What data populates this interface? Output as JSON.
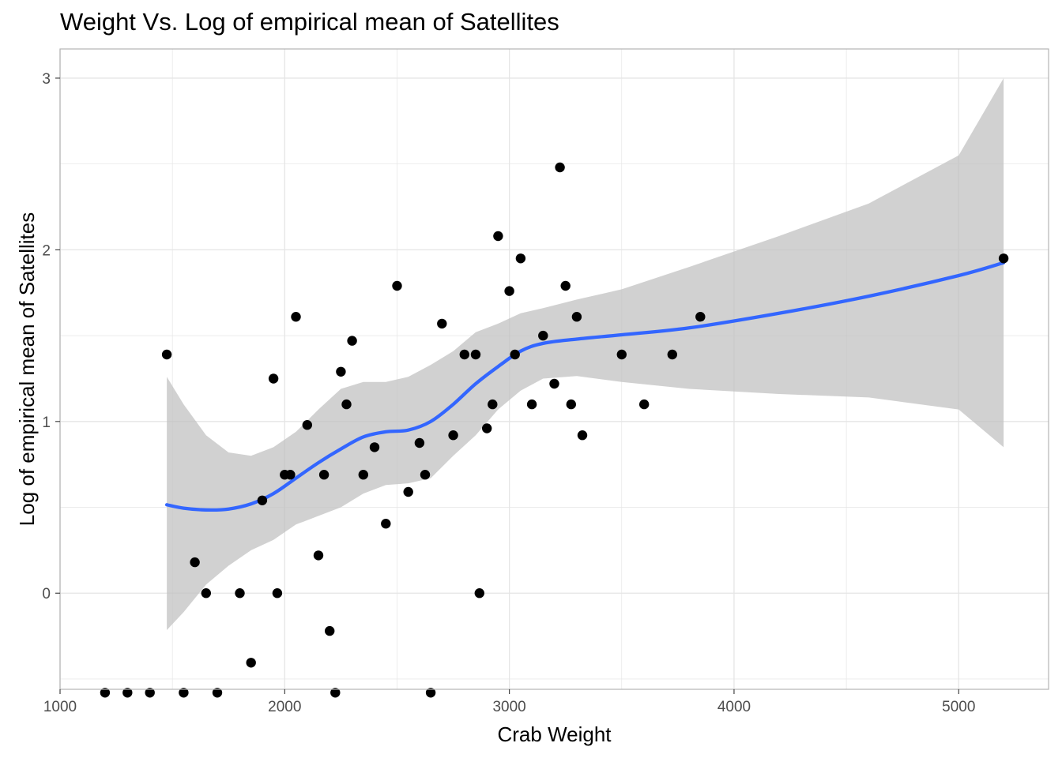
{
  "chart_data": {
    "type": "scatter",
    "title": "Weight Vs. Log of empirical mean of Satellites",
    "xlabel": "Crab Weight",
    "ylabel": "Log of empirical mean of Satellites",
    "xlim": [
      1000,
      5400
    ],
    "ylim": [
      -0.56,
      3.17
    ],
    "x_ticks": [
      1000,
      2000,
      3000,
      4000,
      5000
    ],
    "y_ticks": [
      0,
      1,
      2,
      3
    ],
    "grid": true,
    "legend": "none",
    "colors": {
      "points": "#000000",
      "smooth_line": "#3366ff",
      "confidence_band": "#bfbfbf",
      "grid": "#e5e5e5",
      "panel_border": "#b3b3b3"
    },
    "points": [
      {
        "x": 1200,
        "y": -0.58
      },
      {
        "x": 1300,
        "y": -0.58
      },
      {
        "x": 1400,
        "y": -0.58
      },
      {
        "x": 1475,
        "y": 1.39
      },
      {
        "x": 1550,
        "y": -0.58
      },
      {
        "x": 1600,
        "y": 0.18
      },
      {
        "x": 1650,
        "y": 0.0
      },
      {
        "x": 1700,
        "y": -0.58
      },
      {
        "x": 1800,
        "y": 0.0
      },
      {
        "x": 1850,
        "y": -0.405
      },
      {
        "x": 1900,
        "y": 0.54
      },
      {
        "x": 1950,
        "y": 1.25
      },
      {
        "x": 1967,
        "y": 0.0
      },
      {
        "x": 2000,
        "y": 0.69
      },
      {
        "x": 2025,
        "y": 0.69
      },
      {
        "x": 2050,
        "y": 1.61
      },
      {
        "x": 2100,
        "y": 0.98
      },
      {
        "x": 2150,
        "y": 0.22
      },
      {
        "x": 2175,
        "y": 0.69
      },
      {
        "x": 2200,
        "y": -0.22
      },
      {
        "x": 2225,
        "y": -0.58
      },
      {
        "x": 2250,
        "y": 1.29
      },
      {
        "x": 2275,
        "y": 1.1
      },
      {
        "x": 2300,
        "y": 1.47
      },
      {
        "x": 2350,
        "y": 0.69
      },
      {
        "x": 2400,
        "y": 0.85
      },
      {
        "x": 2450,
        "y": 0.405
      },
      {
        "x": 2500,
        "y": 1.79
      },
      {
        "x": 2550,
        "y": 0.59
      },
      {
        "x": 2600,
        "y": 0.875
      },
      {
        "x": 2625,
        "y": 0.69
      },
      {
        "x": 2650,
        "y": -0.58
      },
      {
        "x": 2700,
        "y": 1.57
      },
      {
        "x": 2750,
        "y": 0.92
      },
      {
        "x": 2800,
        "y": 1.39
      },
      {
        "x": 2850,
        "y": 1.39
      },
      {
        "x": 2867,
        "y": 0.0
      },
      {
        "x": 2900,
        "y": 0.96
      },
      {
        "x": 2925,
        "y": 1.1
      },
      {
        "x": 2950,
        "y": 2.08
      },
      {
        "x": 3000,
        "y": 1.76
      },
      {
        "x": 3025,
        "y": 1.39
      },
      {
        "x": 3050,
        "y": 1.95
      },
      {
        "x": 3100,
        "y": 1.1
      },
      {
        "x": 3150,
        "y": 1.5
      },
      {
        "x": 3200,
        "y": 1.22
      },
      {
        "x": 3225,
        "y": 2.48
      },
      {
        "x": 3250,
        "y": 1.79
      },
      {
        "x": 3275,
        "y": 1.1
      },
      {
        "x": 3300,
        "y": 1.61
      },
      {
        "x": 3325,
        "y": 0.92
      },
      {
        "x": 3500,
        "y": 1.39
      },
      {
        "x": 3600,
        "y": 1.1
      },
      {
        "x": 3725,
        "y": 1.39
      },
      {
        "x": 3850,
        "y": 1.61
      },
      {
        "x": 5200,
        "y": 1.95
      }
    ],
    "smooth": {
      "x": [
        1475,
        1550,
        1650,
        1750,
        1850,
        1950,
        2050,
        2150,
        2250,
        2350,
        2450,
        2550,
        2650,
        2750,
        2850,
        2950,
        3050,
        3150,
        3300,
        3500,
        3800,
        4200,
        4600,
        5000,
        5200
      ],
      "y": [
        0.515,
        0.495,
        0.485,
        0.49,
        0.52,
        0.58,
        0.67,
        0.76,
        0.84,
        0.91,
        0.94,
        0.95,
        1.0,
        1.1,
        1.22,
        1.32,
        1.41,
        1.455,
        1.48,
        1.505,
        1.545,
        1.63,
        1.73,
        1.85,
        1.925
      ],
      "upper": [
        1.26,
        1.1,
        0.92,
        0.82,
        0.8,
        0.85,
        0.94,
        1.07,
        1.19,
        1.23,
        1.23,
        1.26,
        1.33,
        1.41,
        1.52,
        1.57,
        1.63,
        1.66,
        1.71,
        1.77,
        1.9,
        2.08,
        2.27,
        2.55,
        3.0
      ],
      "lower": [
        -0.215,
        -0.11,
        0.05,
        0.16,
        0.25,
        0.31,
        0.4,
        0.45,
        0.5,
        0.58,
        0.63,
        0.64,
        0.67,
        0.8,
        0.92,
        1.07,
        1.18,
        1.25,
        1.265,
        1.23,
        1.19,
        1.16,
        1.14,
        1.07,
        0.85
      ]
    }
  }
}
